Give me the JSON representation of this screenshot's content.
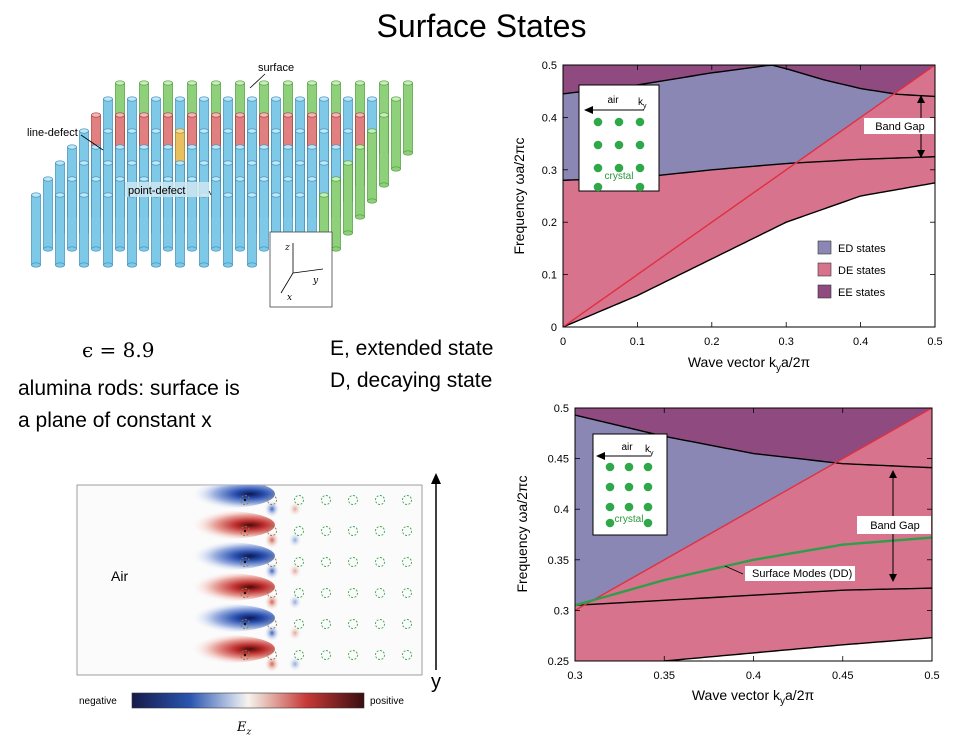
{
  "title": "Surface States",
  "crystal_figure": {
    "labels": {
      "surface": "surface",
      "line_defect": "line-defect",
      "point_defect": "point-defect"
    },
    "axes": {
      "z": "z",
      "y": "y",
      "x": "x"
    },
    "epsilon": "ϵ = 8.9",
    "colors": {
      "bulk": "#7ec8e8",
      "surface": "#8fd07a",
      "line_defect": "#e08080",
      "point_defect": "#e8c060"
    }
  },
  "text": {
    "line1": "alumina rods: surface is",
    "line2": "a plane of constant x",
    "extended": "E, extended state",
    "decaying": "D, decaying state"
  },
  "field_figure": {
    "air_label": "Air",
    "y_label": "y",
    "colorbar": {
      "negative": "negative",
      "positive": "positive",
      "symbol": "E",
      "symbol_sub": "z"
    }
  },
  "chart_data": [
    {
      "type": "area",
      "xlabel": "Wave vector k",
      "xlabel_sub": "y",
      "xlabel_tail": "a/2π",
      "ylabel": "Frequency  ωa/2πc",
      "xlim": [
        0,
        0.5
      ],
      "ylim": [
        0,
        0.5
      ],
      "x_ticks": [
        "0",
        "0.1",
        "0.2",
        "0.3",
        "0.4",
        "0.5"
      ],
      "y_ticks": [
        "0",
        "0.1",
        "0.2",
        "0.3",
        "0.4",
        "0.5"
      ],
      "legend": [
        {
          "name": "ED states",
          "color": "#8b87b5"
        },
        {
          "name": "DE states",
          "color": "#d8738d"
        },
        {
          "name": "EE states",
          "color": "#8f4a80"
        }
      ],
      "annotation": "Band Gap",
      "inset": {
        "air": "air",
        "k": "k",
        "k_sub": "y",
        "crystal": "crystal"
      },
      "curves": {
        "light_line": [
          [
            0,
            0
          ],
          [
            0.5,
            0.5
          ]
        ],
        "band_upper": [
          [
            0,
            0.445
          ],
          [
            0.1,
            0.462
          ],
          [
            0.2,
            0.485
          ],
          [
            0.28,
            0.5
          ],
          [
            0.3,
            0.493
          ],
          [
            0.35,
            0.472
          ],
          [
            0.4,
            0.455
          ],
          [
            0.45,
            0.444
          ],
          [
            0.5,
            0.44
          ]
        ],
        "band_gap_lower": [
          [
            0,
            0.28
          ],
          [
            0.1,
            0.285
          ],
          [
            0.2,
            0.3
          ],
          [
            0.3,
            0.312
          ],
          [
            0.4,
            0.32
          ],
          [
            0.5,
            0.325
          ]
        ],
        "band_lowest": [
          [
            0,
            0
          ],
          [
            0.1,
            0.06
          ],
          [
            0.2,
            0.13
          ],
          [
            0.3,
            0.2
          ],
          [
            0.4,
            0.25
          ],
          [
            0.5,
            0.275
          ]
        ]
      }
    },
    {
      "type": "area",
      "xlabel": "Wave vector k",
      "xlabel_sub": "y",
      "xlabel_tail": "a/2π",
      "ylabel": "Frequency  ωa/2πc",
      "xlim": [
        0.3,
        0.5
      ],
      "ylim": [
        0.25,
        0.5
      ],
      "x_ticks": [
        "0.3",
        "0.35",
        "0.4",
        "0.45",
        "0.5"
      ],
      "y_ticks": [
        "0.25",
        "0.3",
        "0.35",
        "0.4",
        "0.45",
        "0.5"
      ],
      "annotation": "Band Gap",
      "surface_label": "Surface Modes (DD)",
      "inset": {
        "air": "air",
        "k": "k",
        "k_sub": "y",
        "crystal": "crystal"
      },
      "curves": {
        "light_line": [
          [
            0.3,
            0.3
          ],
          [
            0.5,
            0.5
          ]
        ],
        "band_upper": [
          [
            0.3,
            0.493
          ],
          [
            0.35,
            0.472
          ],
          [
            0.4,
            0.455
          ],
          [
            0.45,
            0.445
          ],
          [
            0.5,
            0.441
          ]
        ],
        "band_gap_lower": [
          [
            0.3,
            0.305
          ],
          [
            0.35,
            0.31
          ],
          [
            0.4,
            0.315
          ],
          [
            0.45,
            0.32
          ],
          [
            0.5,
            0.322
          ]
        ],
        "band_lowest": [
          [
            0.35,
            0.25
          ],
          [
            0.4,
            0.258
          ],
          [
            0.45,
            0.266
          ],
          [
            0.5,
            0.273
          ]
        ],
        "surface_mode": [
          [
            0.3,
            0.305
          ],
          [
            0.35,
            0.33
          ],
          [
            0.4,
            0.35
          ],
          [
            0.45,
            0.365
          ],
          [
            0.5,
            0.372
          ]
        ]
      }
    }
  ]
}
